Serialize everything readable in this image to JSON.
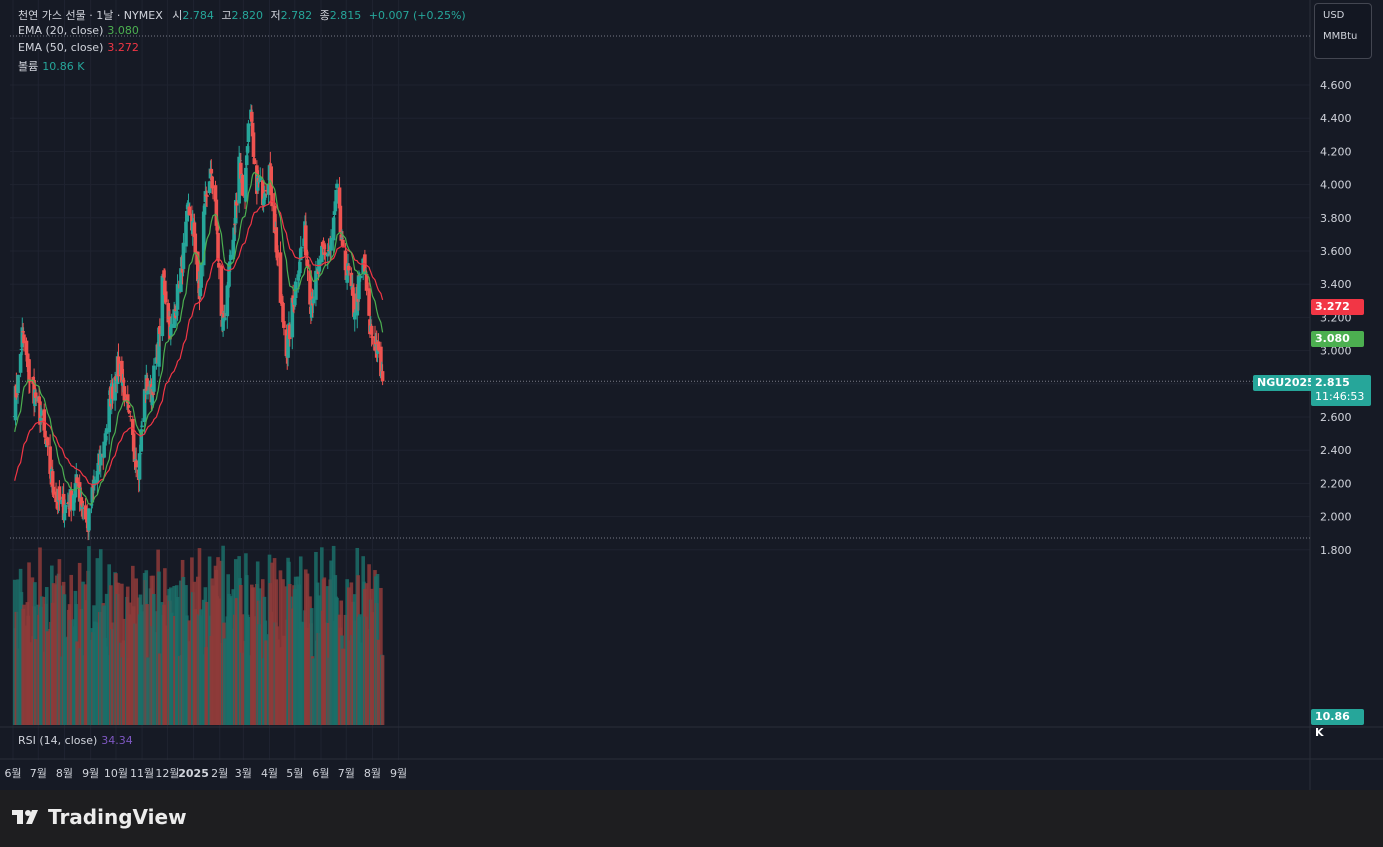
{
  "header": {
    "symbol_name": "천연 가스 선물 · 1날 · NYMEX",
    "open_label": "시",
    "open": "2.784",
    "high_label": "고",
    "high": "2.820",
    "low_label": "저",
    "low": "2.782",
    "close_label": "종",
    "close": "2.815",
    "change": "+0.007 (+0.25%)"
  },
  "indicators": {
    "ema20_label": "EMA (20, close)",
    "ema20_value": "3.080",
    "ema50_label": "EMA (50, close)",
    "ema50_value": "3.272",
    "volume_label": "볼륨",
    "volume_value": "10.86 K",
    "rsi_label": "RSI (14, close)",
    "rsi_value": "34.34"
  },
  "units": {
    "currency": "USD",
    "unit": "MMBtu"
  },
  "price_tags": {
    "ema50": "3.272",
    "ema20": "3.080",
    "ticker": "NGU2025",
    "price": "2.815",
    "countdown": "11:46:53",
    "volume": "10.86 K"
  },
  "brand": {
    "name": "TradingView"
  },
  "colors": {
    "up": "#26a69a",
    "down": "#ef5350",
    "ema20": "#4caf50",
    "ema50": "#f23645",
    "background": "#161a25",
    "grid": "#1f2330",
    "text": "#d1d4dc"
  },
  "chart_data": {
    "type": "candlestick",
    "yaxis": {
      "ticks": [
        "1.800",
        "2.000",
        "2.200",
        "2.400",
        "2.600",
        "2.800",
        "3.000",
        "3.200",
        "3.400",
        "3.600",
        "3.800",
        "4.000",
        "4.200",
        "4.400",
        "4.600"
      ],
      "range": [
        1.62,
        4.95
      ]
    },
    "xaxis": {
      "ticks": [
        "6월",
        "7월",
        "8월",
        "9월",
        "10월",
        "11월",
        "12월",
        "2025",
        "2월",
        "3월",
        "4월",
        "5월",
        "6월",
        "7월",
        "8월",
        "9월"
      ]
    },
    "price_path": [
      [
        "2024-06-01",
        2.62
      ],
      [
        "2024-06-08",
        2.85
      ],
      [
        "2024-06-12",
        3.1
      ],
      [
        "2024-06-20",
        2.85
      ],
      [
        "2024-06-28",
        2.72
      ],
      [
        "2024-07-06",
        2.55
      ],
      [
        "2024-07-14",
        2.3
      ],
      [
        "2024-07-22",
        2.12
      ],
      [
        "2024-07-31",
        2.05
      ],
      [
        "2024-08-08",
        2.1
      ],
      [
        "2024-08-16",
        2.2
      ],
      [
        "2024-08-24",
        2.05
      ],
      [
        "2024-08-29",
        1.95
      ],
      [
        "2024-09-06",
        2.22
      ],
      [
        "2024-09-16",
        2.4
      ],
      [
        "2024-09-24",
        2.7
      ],
      [
        "2024-10-01",
        2.88
      ],
      [
        "2024-10-07",
        2.9
      ],
      [
        "2024-10-14",
        2.65
      ],
      [
        "2024-10-21",
        2.45
      ],
      [
        "2024-10-28",
        2.3
      ],
      [
        "2024-11-05",
        2.8
      ],
      [
        "2024-11-12",
        2.75
      ],
      [
        "2024-11-20",
        3.0
      ],
      [
        "2024-11-26",
        3.45
      ],
      [
        "2024-12-05",
        3.1
      ],
      [
        "2024-12-12",
        3.3
      ],
      [
        "2024-12-18",
        3.5
      ],
      [
        "2024-12-26",
        3.85
      ],
      [
        "2025-01-02",
        3.7
      ],
      [
        "2025-01-08",
        3.3
      ],
      [
        "2025-01-14",
        3.9
      ],
      [
        "2025-01-20",
        4.05
      ],
      [
        "2025-01-28",
        3.8
      ],
      [
        "2025-02-04",
        3.1
      ],
      [
        "2025-02-12",
        3.5
      ],
      [
        "2025-02-18",
        3.7
      ],
      [
        "2025-02-24",
        4.2
      ],
      [
        "2025-03-02",
        3.85
      ],
      [
        "2025-03-06",
        4.3
      ],
      [
        "2025-03-10",
        4.4
      ],
      [
        "2025-03-14",
        4.05
      ],
      [
        "2025-03-24",
        3.95
      ],
      [
        "2025-04-01",
        4.1
      ],
      [
        "2025-04-08",
        3.7
      ],
      [
        "2025-04-14",
        3.3
      ],
      [
        "2025-04-22",
        3.0
      ],
      [
        "2025-04-28",
        3.25
      ],
      [
        "2025-05-06",
        3.55
      ],
      [
        "2025-05-13",
        3.7
      ],
      [
        "2025-05-20",
        3.3
      ],
      [
        "2025-05-28",
        3.45
      ],
      [
        "2025-06-04",
        3.6
      ],
      [
        "2025-06-12",
        3.6
      ],
      [
        "2025-06-20",
        3.95
      ],
      [
        "2025-06-27",
        3.55
      ],
      [
        "2025-07-04",
        3.45
      ],
      [
        "2025-07-10",
        3.25
      ],
      [
        "2025-07-17",
        3.4
      ],
      [
        "2025-07-22",
        3.55
      ],
      [
        "2025-07-28",
        3.15
      ],
      [
        "2025-08-04",
        3.05
      ],
      [
        "2025-08-08",
        2.95
      ],
      [
        "2025-08-13",
        2.82
      ]
    ],
    "volume_ylim": [
      0,
      1.0
    ],
    "rsi_value": 34.34
  }
}
